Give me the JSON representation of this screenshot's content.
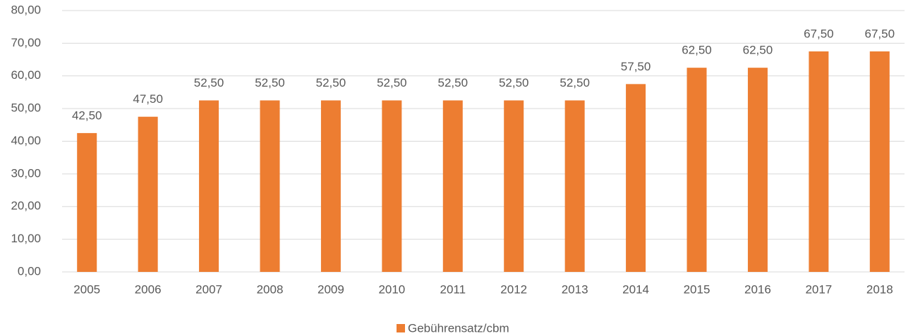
{
  "chart_data": {
    "type": "bar",
    "categories": [
      "2005",
      "2006",
      "2007",
      "2008",
      "2009",
      "2010",
      "2011",
      "2012",
      "2013",
      "2014",
      "2015",
      "2016",
      "2017",
      "2018"
    ],
    "series": [
      {
        "name": "Gebührensatz/cbm",
        "color": "#ED7D31",
        "values": [
          42.5,
          47.5,
          52.5,
          52.5,
          52.5,
          52.5,
          52.5,
          52.5,
          52.5,
          57.5,
          62.5,
          62.5,
          67.5,
          67.5
        ],
        "value_labels": [
          "42,50",
          "47,50",
          "52,50",
          "52,50",
          "52,50",
          "52,50",
          "52,50",
          "52,50",
          "52,50",
          "57,50",
          "62,50",
          "62,50",
          "67,50",
          "67,50"
        ]
      }
    ],
    "ylim": [
      0,
      80
    ],
    "yticks": [
      {
        "value": 0,
        "label": "0,00"
      },
      {
        "value": 10,
        "label": "10,00"
      },
      {
        "value": 20,
        "label": "20,00"
      },
      {
        "value": 30,
        "label": "30,00"
      },
      {
        "value": 40,
        "label": "40,00"
      },
      {
        "value": 50,
        "label": "50,00"
      },
      {
        "value": 60,
        "label": "60,00"
      },
      {
        "value": 70,
        "label": "70,00"
      },
      {
        "value": 80,
        "label": "80,00"
      }
    ],
    "grid": true,
    "legend": "bottom"
  }
}
